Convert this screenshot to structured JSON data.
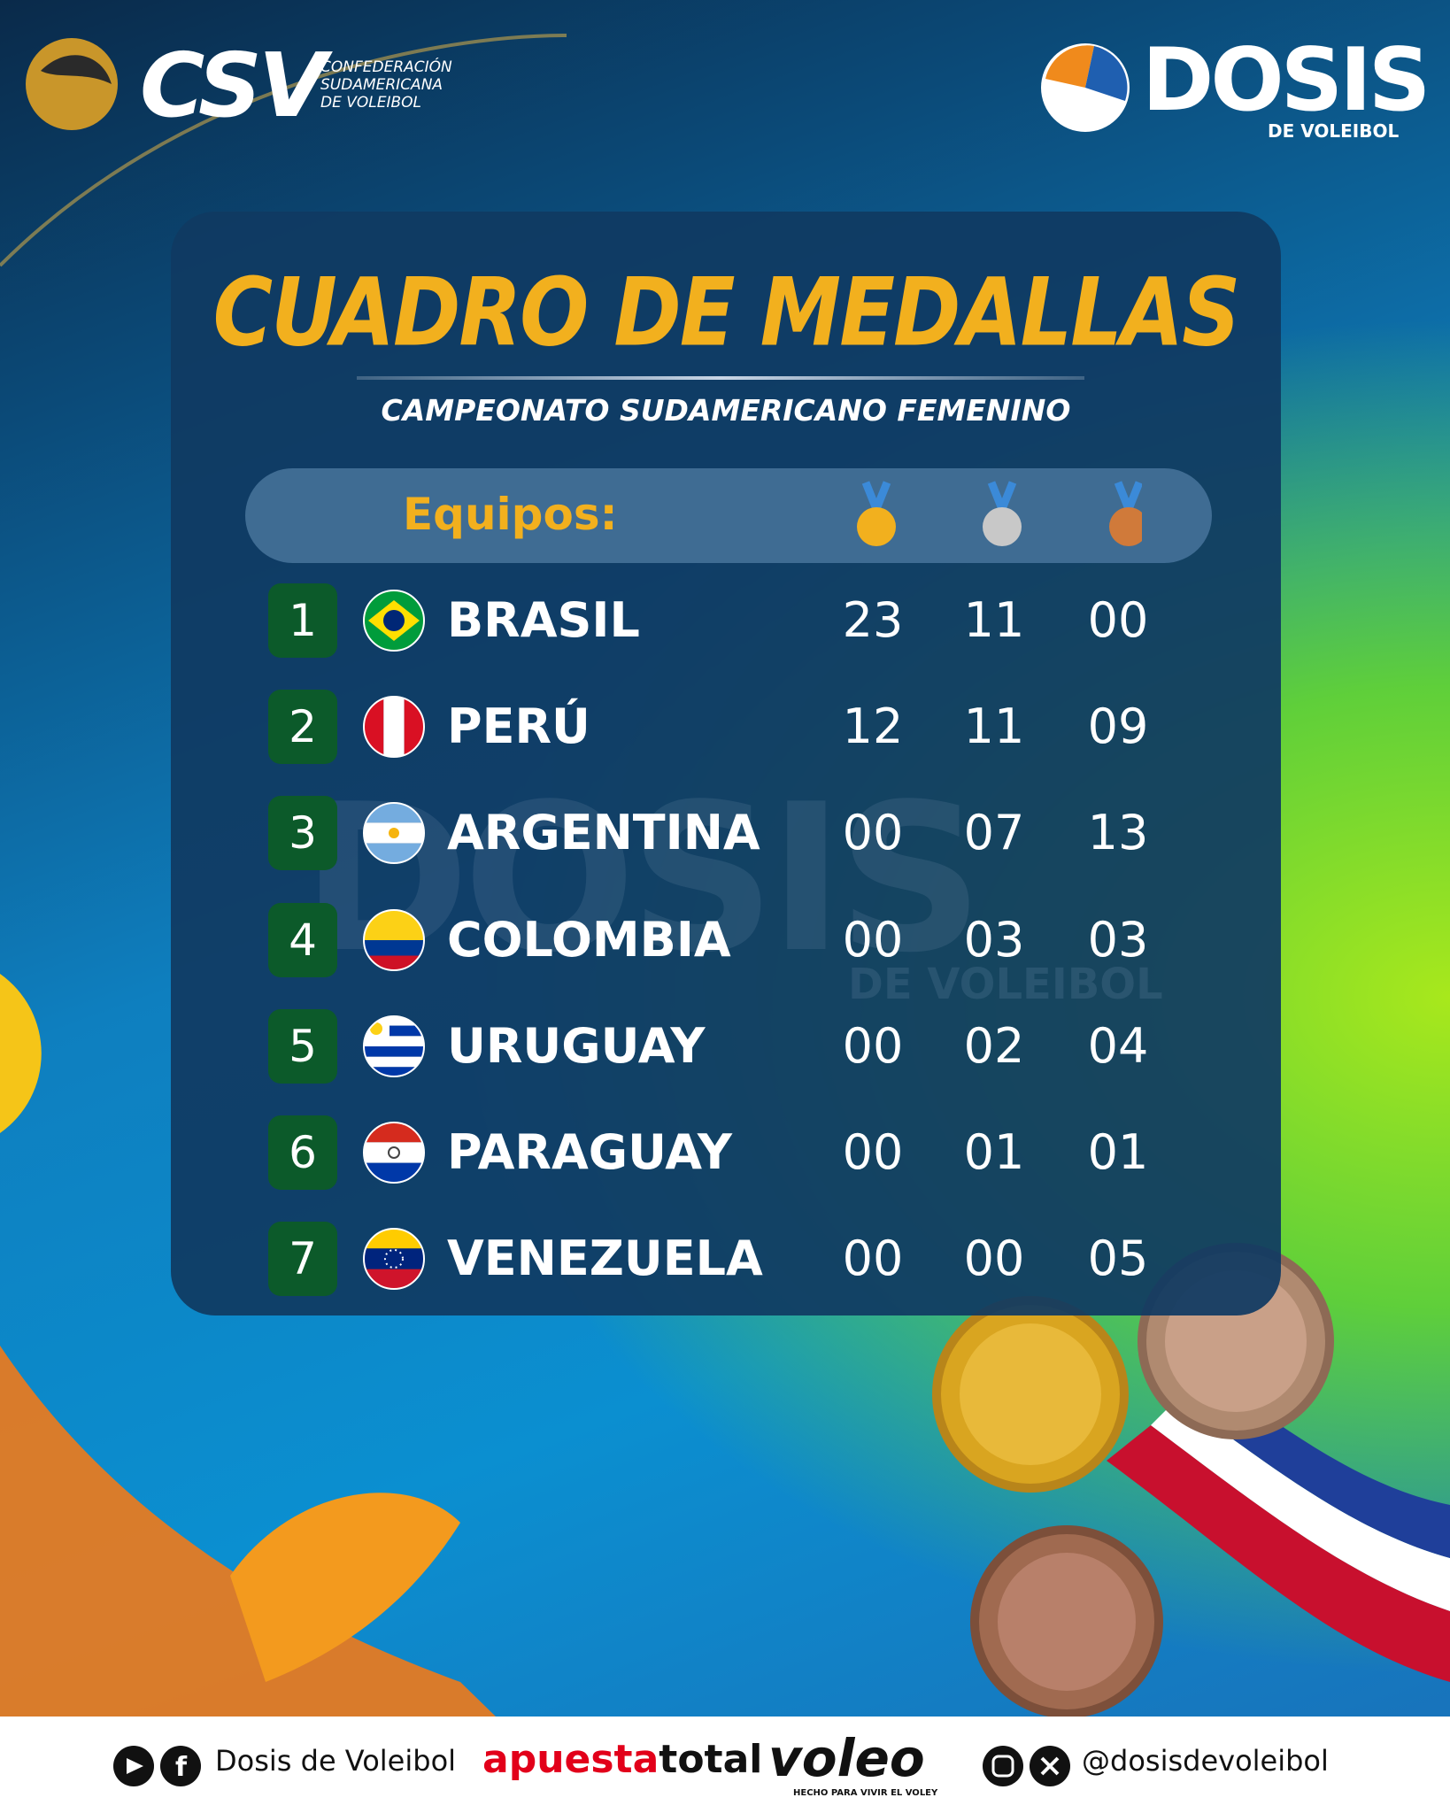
{
  "header": {
    "csv_logo": "CSV",
    "csv_name": [
      "CONFEDERACIÓN",
      "SUDAMERICANA",
      "DE VOLEIBOL"
    ],
    "dosis_logo": "DOSIS",
    "dosis_tagline": "DE VOLEIBOL"
  },
  "title": "CUADRO DE MEDALLAS",
  "subtitle": "CAMPEONATO SUDAMERICANO FEMENINO",
  "table": {
    "header": "Equipos:",
    "rows": [
      {
        "rank": "1",
        "team": "BRASIL",
        "gold": "23",
        "silver": "11",
        "bronze": "00"
      },
      {
        "rank": "2",
        "team": "PERÚ",
        "gold": "12",
        "silver": "11",
        "bronze": "09"
      },
      {
        "rank": "3",
        "team": "ARGENTINA",
        "gold": "00",
        "silver": "07",
        "bronze": "13"
      },
      {
        "rank": "4",
        "team": "COLOMBIA",
        "gold": "00",
        "silver": "03",
        "bronze": "03"
      },
      {
        "rank": "5",
        "team": "URUGUAY",
        "gold": "00",
        "silver": "02",
        "bronze": "04"
      },
      {
        "rank": "6",
        "team": "PARAGUAY",
        "gold": "00",
        "silver": "01",
        "bronze": "01"
      },
      {
        "rank": "7",
        "team": "VENEZUELA",
        "gold": "00",
        "silver": "00",
        "bronze": "05"
      }
    ]
  },
  "watermark": {
    "logo": "DOSIS",
    "tagline": "DE VOLEIBOL"
  },
  "footer": {
    "social_name": "Dosis de Voleibol",
    "sponsor_a": "apuesta",
    "sponsor_b": "total",
    "brand": "voleo",
    "brand_tagline": "HECHO PARA VIVIR EL VOLEY",
    "handle": "@dosisdevoleibol"
  }
}
